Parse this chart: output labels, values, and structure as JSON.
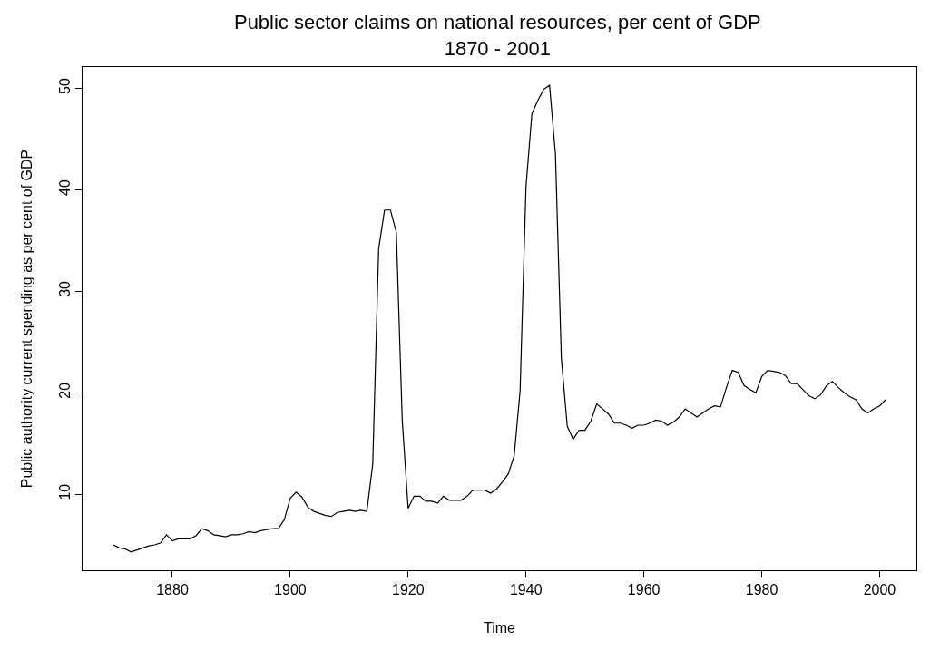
{
  "chart_data": {
    "type": "line",
    "title": "Public sector claims on national resources, per cent of GDP\n1870 - 2001",
    "xlabel": "Time",
    "ylabel": "Public authority current spending as per cent of GDP",
    "x": [
      1870,
      1871,
      1872,
      1873,
      1874,
      1875,
      1876,
      1877,
      1878,
      1879,
      1880,
      1881,
      1882,
      1883,
      1884,
      1885,
      1886,
      1887,
      1888,
      1889,
      1890,
      1891,
      1892,
      1893,
      1894,
      1895,
      1896,
      1897,
      1898,
      1899,
      1900,
      1901,
      1902,
      1903,
      1904,
      1905,
      1906,
      1907,
      1908,
      1909,
      1910,
      1911,
      1912,
      1913,
      1914,
      1915,
      1916,
      1917,
      1918,
      1919,
      1920,
      1921,
      1922,
      1923,
      1924,
      1925,
      1926,
      1927,
      1928,
      1929,
      1930,
      1931,
      1932,
      1933,
      1934,
      1935,
      1936,
      1937,
      1938,
      1939,
      1940,
      1941,
      1942,
      1943,
      1944,
      1945,
      1946,
      1947,
      1948,
      1949,
      1950,
      1951,
      1952,
      1953,
      1954,
      1955,
      1956,
      1957,
      1958,
      1959,
      1960,
      1961,
      1962,
      1963,
      1964,
      1965,
      1966,
      1967,
      1968,
      1969,
      1970,
      1971,
      1972,
      1973,
      1974,
      1975,
      1976,
      1977,
      1978,
      1979,
      1980,
      1981,
      1982,
      1983,
      1984,
      1985,
      1986,
      1987,
      1988,
      1989,
      1990,
      1991,
      1992,
      1993,
      1994,
      1995,
      1996,
      1997,
      1998,
      1999,
      2000,
      2001
    ],
    "series": [
      {
        "color": "#000000",
        "values": [
          5.0,
          4.7,
          4.6,
          4.3,
          4.5,
          4.7,
          4.9,
          5.0,
          5.2,
          6.0,
          5.4,
          5.6,
          5.6,
          5.6,
          5.9,
          6.6,
          6.4,
          6.0,
          5.9,
          5.8,
          6.0,
          6.0,
          6.1,
          6.3,
          6.2,
          6.4,
          6.5,
          6.6,
          6.6,
          7.5,
          9.6,
          10.2,
          9.7,
          8.7,
          8.3,
          8.1,
          7.9,
          7.8,
          8.2,
          8.3,
          8.4,
          8.3,
          8.4,
          8.3,
          13.0,
          34.2,
          38.0,
          38.0,
          35.8,
          17.3,
          8.6,
          9.8,
          9.8,
          9.3,
          9.3,
          9.1,
          9.8,
          9.4,
          9.4,
          9.4,
          9.8,
          10.4,
          10.4,
          10.4,
          10.1,
          10.5,
          11.2,
          12.0,
          13.8,
          20.2,
          40.3,
          47.5,
          48.8,
          49.9,
          50.3,
          43.5,
          23.4,
          16.7,
          15.4,
          16.3,
          16.3,
          17.2,
          18.9,
          18.4,
          17.9,
          17.0,
          17.0,
          16.8,
          16.5,
          16.8,
          16.8,
          17.0,
          17.3,
          17.2,
          16.8,
          17.1,
          17.6,
          18.4,
          18.0,
          17.6,
          18.0,
          18.4,
          18.7,
          18.6,
          20.5,
          22.2,
          22.0,
          20.7,
          20.3,
          20.0,
          21.6,
          22.2,
          22.1,
          22.0,
          21.7,
          20.9,
          20.9,
          20.3,
          19.7,
          19.4,
          19.8,
          20.7,
          21.1,
          20.5,
          20.0,
          19.6,
          19.3,
          18.4,
          18.0,
          18.4,
          18.7,
          19.3
        ]
      }
    ],
    "xlim": [
      1864.76,
      2006.24
    ],
    "xticks": [
      1880,
      1900,
      1920,
      1940,
      1960,
      1980,
      2000
    ],
    "ylim": [
      2.5,
      52.1
    ],
    "yticks": [
      10,
      20,
      30,
      40,
      50
    ],
    "marker": "none",
    "line_style": "solid"
  }
}
